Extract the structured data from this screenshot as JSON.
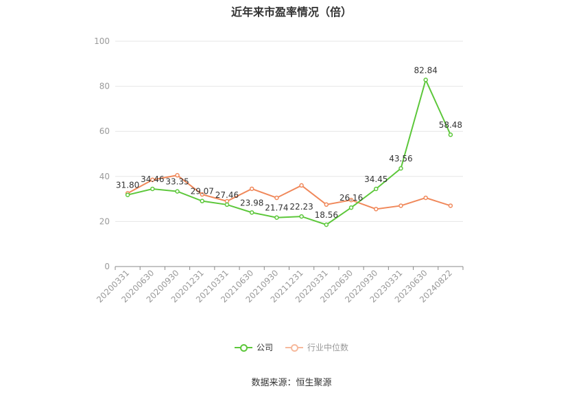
{
  "title": "近年来市盈率情况（倍）",
  "source": "数据来源：恒生聚源",
  "chart_data": {
    "type": "line",
    "categories": [
      "20200331",
      "20200630",
      "20200930",
      "20201231",
      "20210331",
      "20210630",
      "20210930",
      "20211231",
      "20220331",
      "20220630",
      "20220930",
      "20230331",
      "20230630",
      "20240822"
    ],
    "ylim": [
      0,
      100
    ],
    "yticks": [
      0,
      20,
      40,
      60,
      80,
      100
    ],
    "grid": true,
    "legend_position": "bottom",
    "series": [
      {
        "name": "公司",
        "color": "#5cc73a",
        "values": [
          31.8,
          34.46,
          33.35,
          29.07,
          27.46,
          23.98,
          21.74,
          22.23,
          18.56,
          26.16,
          34.45,
          43.56,
          82.84,
          58.48
        ],
        "labels": [
          "31.80",
          "34.46",
          "33.35",
          "29.07",
          "27.46",
          "23.98",
          "21.74",
          "22.23",
          "18.56",
          "26.16",
          "34.45",
          "43.56",
          "82.84",
          "58.48"
        ]
      },
      {
        "name": "行业中位数",
        "color": "#f0885a",
        "values": [
          32.5,
          38.5,
          40.5,
          32.0,
          29.0,
          34.5,
          30.5,
          36.0,
          27.5,
          29.5,
          25.5,
          27.0,
          30.5,
          27.0
        ]
      }
    ]
  }
}
